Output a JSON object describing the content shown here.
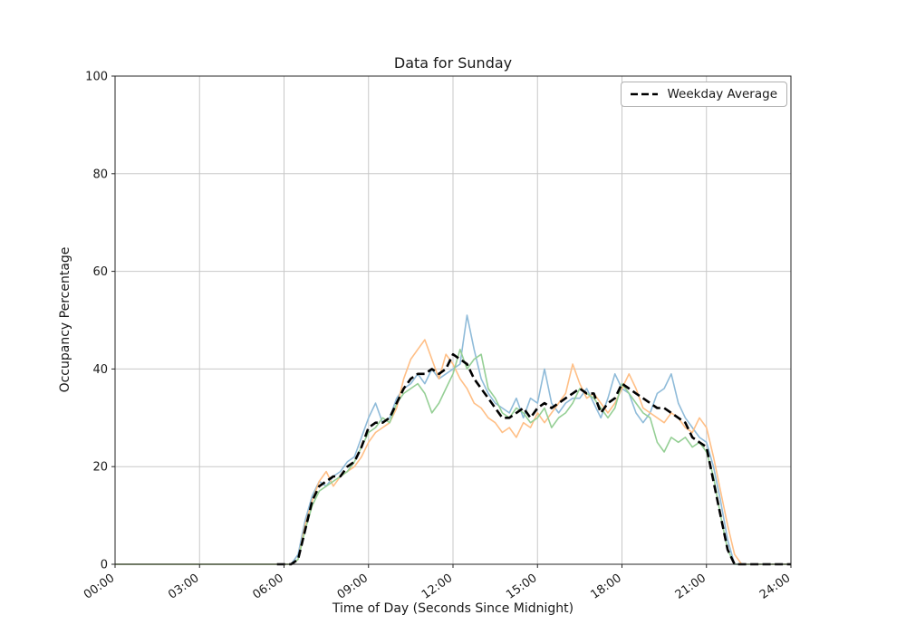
{
  "figure": {
    "title": "Data for Sunday",
    "xlabel": "Time of Day (Seconds Since Midnight)",
    "ylabel": "Occupancy Percentage",
    "legend_label": "Weekday Average"
  },
  "chart_data": {
    "type": "line",
    "title": "Data for Sunday",
    "xlabel": "Time of Day (Seconds Since Midnight)",
    "ylabel": "Occupancy Percentage",
    "xlim": [
      0,
      86400
    ],
    "ylim": [
      0,
      100
    ],
    "grid": true,
    "legend_position": "upper right",
    "style": {
      "background": "#ffffff",
      "grid_color": "#c8c8c8",
      "spine_color": "#262626",
      "text_color": "#1a1a1a"
    },
    "x_ticks": {
      "values": [
        0,
        10800,
        21600,
        32400,
        43200,
        54000,
        64800,
        75600,
        86400
      ],
      "labels": [
        "00:00",
        "03:00",
        "06:00",
        "09:00",
        "12:00",
        "15:00",
        "18:00",
        "21:00",
        "24:00"
      ]
    },
    "y_ticks": [
      0,
      20,
      40,
      60,
      80,
      100
    ],
    "x": [
      0,
      900,
      1800,
      2700,
      3600,
      4500,
      5400,
      6300,
      7200,
      8100,
      9000,
      9900,
      10800,
      11700,
      12600,
      13500,
      14400,
      15300,
      16200,
      17100,
      18000,
      18900,
      19800,
      20700,
      21600,
      22500,
      23400,
      24300,
      25200,
      26100,
      27000,
      27900,
      28800,
      29700,
      30600,
      31500,
      32400,
      33300,
      34200,
      35100,
      36000,
      36900,
      37800,
      38700,
      39600,
      40500,
      41400,
      42300,
      43200,
      44100,
      45000,
      45900,
      46800,
      47700,
      48600,
      49500,
      50400,
      51300,
      52200,
      53100,
      54000,
      54900,
      55800,
      56700,
      57600,
      58500,
      59400,
      60300,
      61200,
      62100,
      63000,
      63900,
      64800,
      65700,
      66600,
      67500,
      68400,
      69300,
      70200,
      71100,
      72000,
      72900,
      73800,
      74700,
      75600,
      76500,
      77400,
      78300,
      79200,
      80100,
      81000,
      81900,
      82800,
      83700,
      84600,
      85500,
      86400
    ],
    "series": [
      {
        "id": "sunday-line-1",
        "color": "#8FBBD9",
        "width": 1.6,
        "dash": null,
        "values": [
          0,
          0,
          0,
          0,
          0,
          0,
          0,
          0,
          0,
          0,
          0,
          0,
          0,
          0,
          0,
          0,
          0,
          0,
          0,
          0,
          0,
          0,
          0,
          0,
          0,
          0,
          2,
          9,
          14,
          17,
          16,
          18,
          19,
          21,
          22,
          26,
          30,
          33,
          29,
          30,
          34,
          36,
          37,
          39,
          37,
          40,
          38,
          39,
          40,
          41,
          51,
          44,
          38,
          35,
          33,
          32,
          31,
          34,
          30,
          34,
          33,
          40,
          33,
          31,
          33,
          34,
          34,
          36,
          33,
          30,
          34,
          39,
          36,
          35,
          31,
          29,
          31,
          35,
          36,
          39,
          33,
          30,
          28,
          26,
          25,
          20,
          13,
          5,
          0,
          0,
          0,
          0,
          0,
          0,
          0,
          0,
          0
        ]
      },
      {
        "id": "sunday-line-2",
        "color": "#FFBF86",
        "width": 1.6,
        "dash": null,
        "values": [
          0,
          0,
          0,
          0,
          0,
          0,
          0,
          0,
          0,
          0,
          0,
          0,
          0,
          0,
          0,
          0,
          0,
          0,
          0,
          0,
          0,
          0,
          0,
          0,
          0,
          0,
          1,
          8,
          13,
          17,
          19,
          16,
          18,
          19,
          20,
          22,
          25,
          27,
          28,
          29,
          32,
          38,
          42,
          44,
          46,
          42,
          38,
          43,
          41,
          38,
          36,
          33,
          32,
          30,
          29,
          27,
          28,
          26,
          29,
          28,
          31,
          29,
          31,
          33,
          35,
          41,
          37,
          34,
          35,
          33,
          31,
          33,
          36,
          39,
          36,
          32,
          31,
          30,
          29,
          31,
          30,
          28,
          27,
          30,
          28,
          22,
          15,
          8,
          2,
          0,
          0,
          0,
          0,
          0,
          0,
          0,
          0
        ]
      },
      {
        "id": "sunday-line-3",
        "color": "#95CF95",
        "width": 1.6,
        "dash": null,
        "values": [
          0,
          0,
          0,
          0,
          0,
          0,
          0,
          0,
          0,
          0,
          0,
          0,
          0,
          0,
          0,
          0,
          0,
          0,
          0,
          0,
          0,
          0,
          0,
          0,
          0,
          0,
          1,
          7,
          12,
          15,
          16,
          17,
          18,
          19,
          21,
          24,
          27,
          28,
          30,
          29,
          33,
          35,
          36,
          37,
          35,
          31,
          33,
          36,
          39,
          44,
          40,
          42,
          43,
          36,
          34,
          31,
          30,
          32,
          31,
          29,
          30,
          32,
          28,
          30,
          31,
          33,
          36,
          35,
          34,
          32,
          30,
          32,
          37,
          35,
          33,
          31,
          30,
          25,
          23,
          26,
          25,
          26,
          24,
          25,
          23,
          18,
          10,
          3,
          0,
          0,
          0,
          0,
          0,
          0,
          0,
          0,
          0
        ]
      },
      {
        "id": "weekday-average",
        "name": "Weekday Average",
        "color": "#000000",
        "width": 2.6,
        "dash": "9 4.5",
        "values": [
          null,
          null,
          null,
          null,
          null,
          null,
          null,
          null,
          null,
          null,
          null,
          null,
          null,
          null,
          null,
          null,
          null,
          null,
          null,
          null,
          null,
          null,
          null,
          0,
          0,
          0,
          1,
          7,
          13,
          16,
          17,
          18,
          18,
          20,
          21,
          24,
          28,
          29,
          29,
          30,
          33,
          36,
          38,
          39,
          39,
          40,
          39,
          40,
          43,
          42,
          41,
          38,
          36,
          34,
          32,
          30,
          30,
          31,
          32,
          30,
          32,
          33,
          32,
          33,
          34,
          35,
          36,
          35,
          35,
          31,
          33,
          34,
          37,
          36,
          35,
          34,
          33,
          32,
          32,
          31,
          30,
          29,
          26,
          25,
          24,
          17,
          10,
          3,
          0,
          0,
          0,
          0,
          0,
          0,
          0,
          0,
          0
        ]
      }
    ]
  }
}
